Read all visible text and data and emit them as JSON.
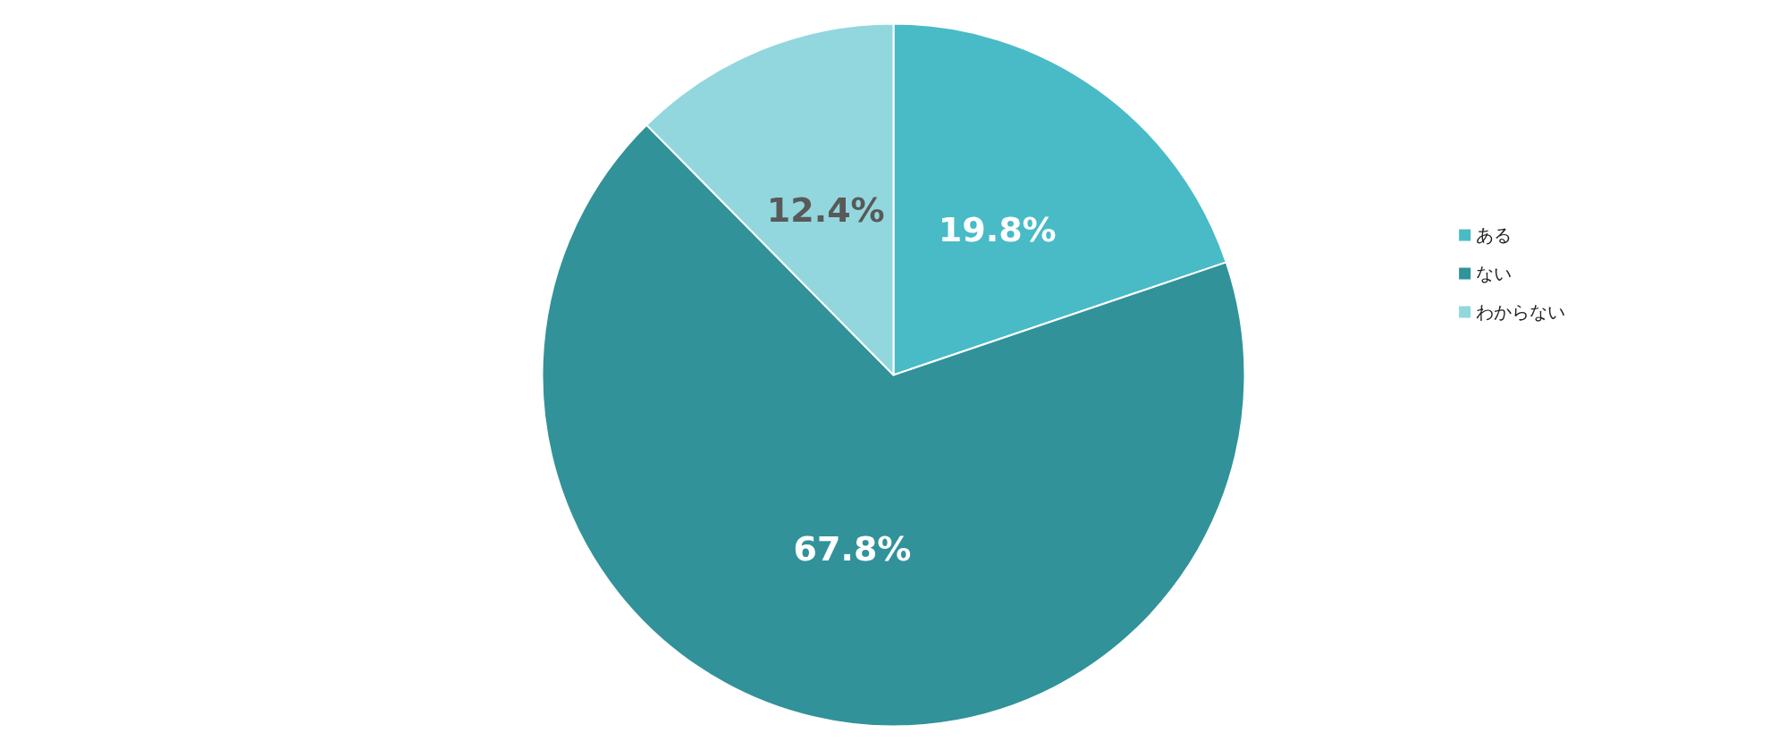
{
  "chart_data": {
    "type": "pie",
    "categories": [
      "ある",
      "ない",
      "わからない"
    ],
    "values": [
      19.8,
      67.8,
      12.4
    ],
    "value_labels": [
      "19.8%",
      "67.8%",
      "12.4%"
    ],
    "colors": [
      "#48bbc6",
      "#319299",
      "#92d7de"
    ],
    "legend": "right"
  }
}
